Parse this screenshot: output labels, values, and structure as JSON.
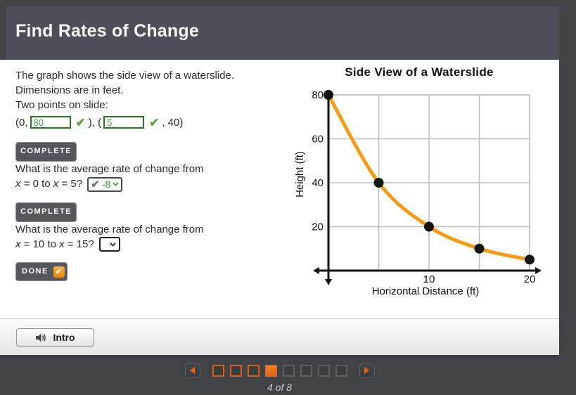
{
  "header": {
    "title": "Find Rates of Change",
    "bg_color": "#4C4F57"
  },
  "problem": {
    "intro_line1": "The graph shows the side view of a waterslide.",
    "intro_line2": "Dimensions are in feet.",
    "points_label": "Two points on slide:",
    "p1_pre": "(0, ",
    "p1_value": "80",
    "p1_post": " ), (",
    "p2_value": "5",
    "p2_post": " , 40)"
  },
  "badges": {
    "complete": "COMPLETE",
    "done": "DONE"
  },
  "questions": [
    {
      "line1": "What is the average rate of change from",
      "x": "x",
      "mid": " = 0 to ",
      "end": " = 5? ",
      "answer": "-8"
    },
    {
      "line1": "What is the average rate of change from",
      "x": "x",
      "mid": " = 10 to ",
      "end": " = 15? ",
      "answer": ""
    }
  ],
  "footer": {
    "intro_label": "Intro"
  },
  "nav": {
    "squares": [
      "visited",
      "visited",
      "visited",
      "current",
      "future",
      "future",
      "future",
      "future"
    ],
    "page_indicator": "4 of 8",
    "accent_color": "#E2641C"
  },
  "chart_data": {
    "type": "line",
    "title": "Side View of a Waterslide",
    "xlabel": "Horizontal Distance (ft)",
    "ylabel": "Height (ft)",
    "x": [
      0,
      5,
      10,
      15,
      20
    ],
    "y": [
      80,
      40,
      20,
      10,
      5
    ],
    "xlim": [
      0,
      20
    ],
    "ylim": [
      0,
      80
    ],
    "xticks": [
      10,
      20
    ],
    "yticks": [
      20,
      40,
      60,
      80
    ],
    "grid_x": [
      5,
      10,
      15,
      20
    ],
    "grid_y": [
      20,
      40,
      60,
      80
    ],
    "grid": true,
    "legend": false,
    "line_color": "#F59C15",
    "marker_color": "#141414"
  }
}
